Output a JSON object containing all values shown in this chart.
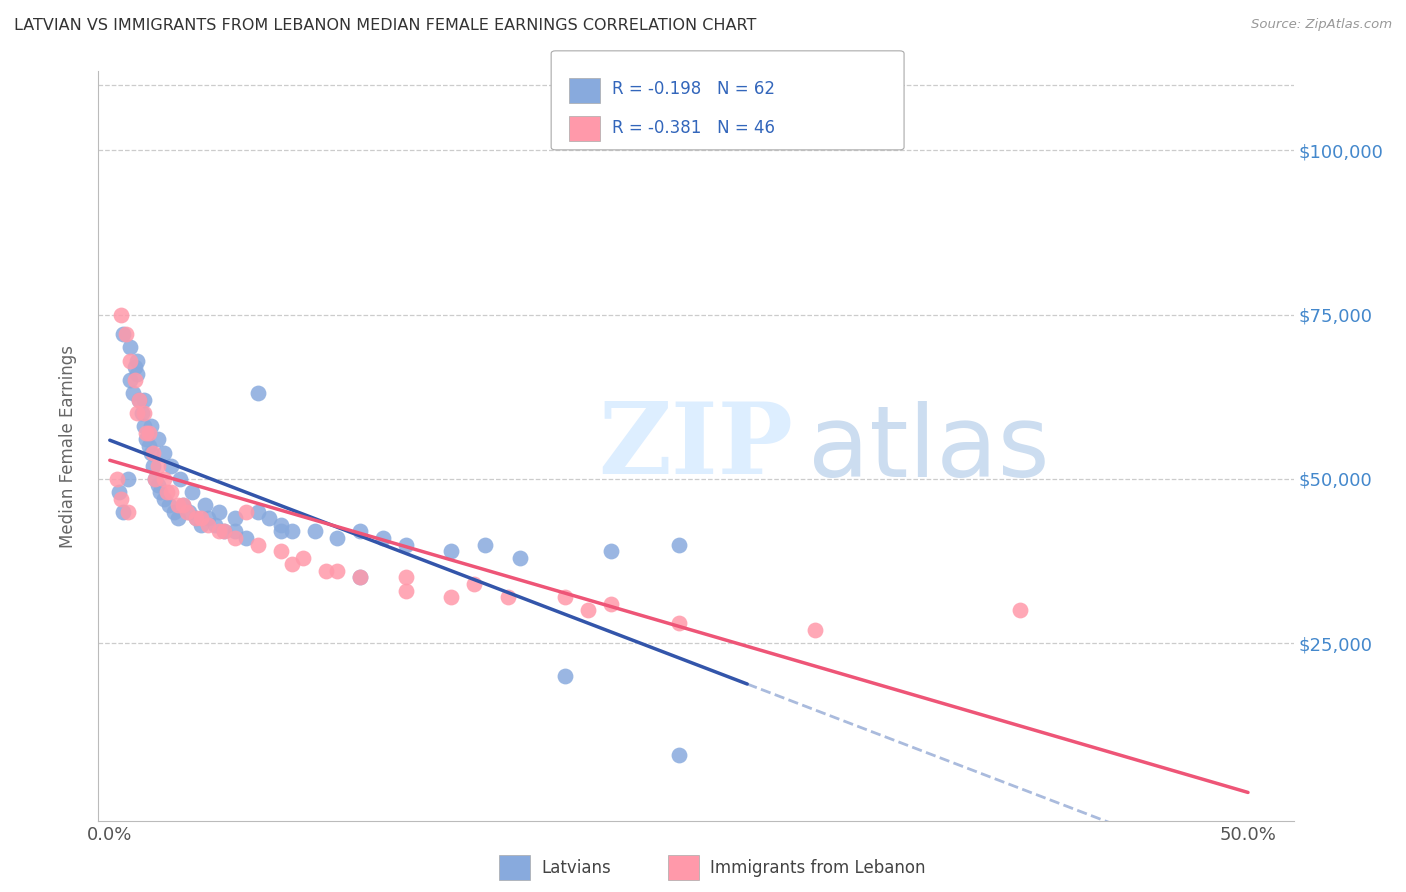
{
  "title": "LATVIAN VS IMMIGRANTS FROM LEBANON MEDIAN FEMALE EARNINGS CORRELATION CHART",
  "source": "Source: ZipAtlas.com",
  "ylabel": "Median Female Earnings",
  "xlim": [
    -0.005,
    0.52
  ],
  "ylim": [
    -2000,
    112000
  ],
  "background_color": "#ffffff",
  "grid_color": "#cccccc",
  "blue_color": "#88AADD",
  "pink_color": "#FF99AA",
  "blue_line_color": "#3355AA",
  "pink_line_color": "#EE5577",
  "blue_dash_color": "#AABBDD",
  "blue_R": -0.198,
  "blue_N": 62,
  "pink_R": -0.381,
  "pink_N": 46,
  "blue_scatter_x": [
    0.004,
    0.006,
    0.008,
    0.009,
    0.01,
    0.011,
    0.012,
    0.013,
    0.014,
    0.015,
    0.016,
    0.017,
    0.018,
    0.019,
    0.02,
    0.021,
    0.022,
    0.024,
    0.026,
    0.028,
    0.03,
    0.032,
    0.035,
    0.038,
    0.04,
    0.043,
    0.046,
    0.05,
    0.055,
    0.06,
    0.065,
    0.07,
    0.075,
    0.08,
    0.09,
    0.1,
    0.11,
    0.12,
    0.13,
    0.15,
    0.165,
    0.18,
    0.22,
    0.25,
    0.006,
    0.009,
    0.012,
    0.015,
    0.018,
    0.021,
    0.024,
    0.027,
    0.031,
    0.036,
    0.042,
    0.048,
    0.055,
    0.065,
    0.075,
    0.11,
    0.2,
    0.25
  ],
  "blue_scatter_y": [
    48000,
    45000,
    50000,
    65000,
    63000,
    67000,
    66000,
    62000,
    60000,
    58000,
    56000,
    55000,
    54000,
    52000,
    50000,
    49000,
    48000,
    47000,
    46000,
    45000,
    44000,
    46000,
    45000,
    44000,
    43000,
    44000,
    43000,
    42000,
    42000,
    41000,
    45000,
    44000,
    43000,
    42000,
    42000,
    41000,
    42000,
    41000,
    40000,
    39000,
    40000,
    38000,
    39000,
    40000,
    72000,
    70000,
    68000,
    62000,
    58000,
    56000,
    54000,
    52000,
    50000,
    48000,
    46000,
    45000,
    44000,
    63000,
    42000,
    35000,
    20000,
    8000
  ],
  "pink_scatter_x": [
    0.003,
    0.005,
    0.007,
    0.009,
    0.011,
    0.013,
    0.015,
    0.017,
    0.019,
    0.021,
    0.024,
    0.027,
    0.03,
    0.034,
    0.038,
    0.043,
    0.048,
    0.055,
    0.065,
    0.075,
    0.085,
    0.095,
    0.11,
    0.13,
    0.15,
    0.175,
    0.21,
    0.25,
    0.31,
    0.4,
    0.005,
    0.008,
    0.012,
    0.016,
    0.02,
    0.025,
    0.032,
    0.04,
    0.05,
    0.06,
    0.08,
    0.1,
    0.13,
    0.16,
    0.2,
    0.22
  ],
  "pink_scatter_y": [
    50000,
    75000,
    72000,
    68000,
    65000,
    62000,
    60000,
    57000,
    54000,
    52000,
    50000,
    48000,
    46000,
    45000,
    44000,
    43000,
    42000,
    41000,
    40000,
    39000,
    38000,
    36000,
    35000,
    33000,
    32000,
    32000,
    30000,
    28000,
    27000,
    30000,
    47000,
    45000,
    60000,
    57000,
    50000,
    48000,
    46000,
    44000,
    42000,
    45000,
    37000,
    36000,
    35000,
    34000,
    32000,
    31000
  ]
}
